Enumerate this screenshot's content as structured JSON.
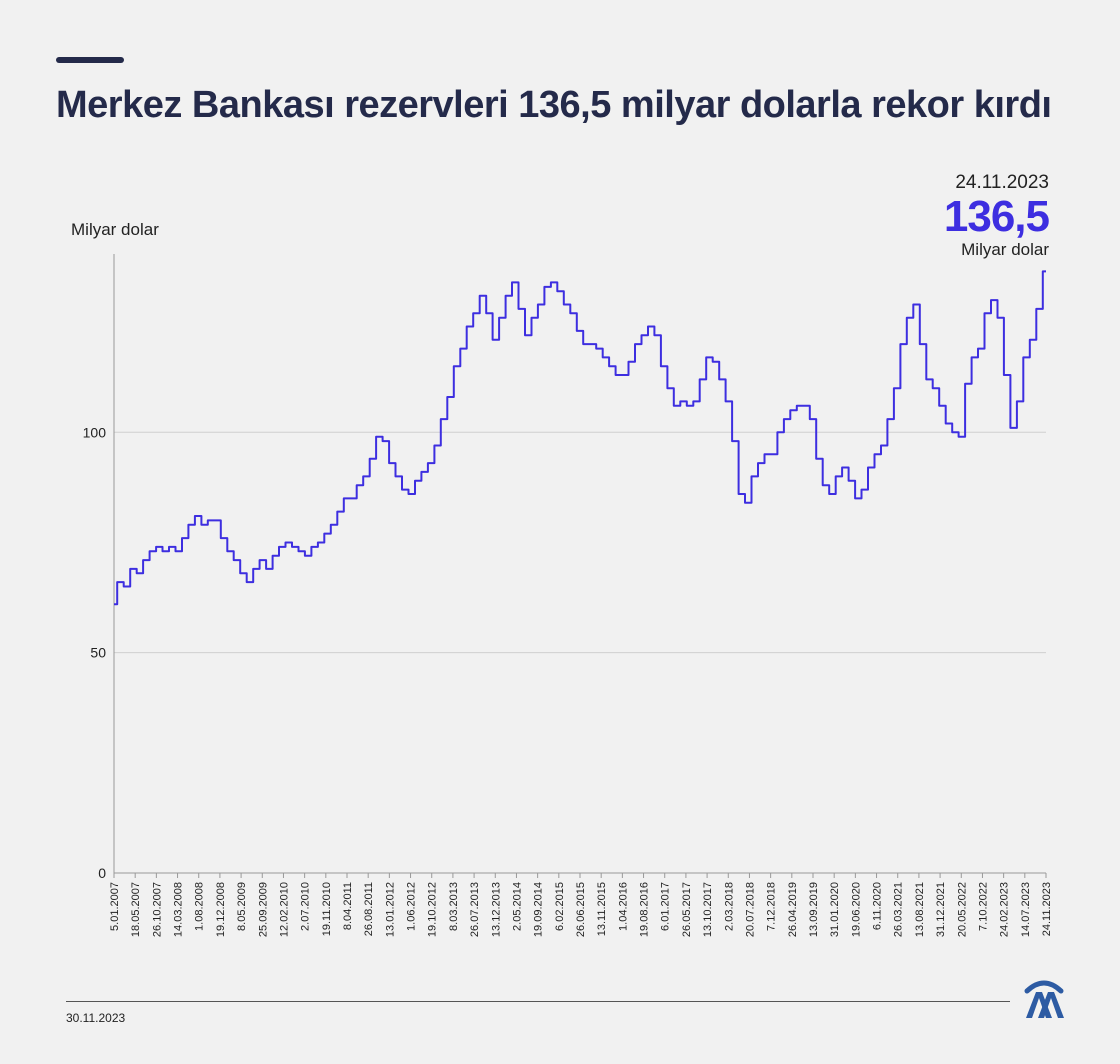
{
  "header": {
    "title": "Merkez Bankası rezervleri 136,5 milyar dolarla rekor kırdı"
  },
  "callout": {
    "date": "24.11.2023",
    "value": "136,5",
    "unit": "Milyar dolar"
  },
  "footer": {
    "date": "30.11.2023",
    "logo": "aa-logo-icon"
  },
  "colors": {
    "line": "#3d2ee0",
    "title": "#242a4a",
    "logo": "#2d5ba3"
  },
  "chart_data": {
    "type": "line",
    "title": "",
    "ylabel": "Milyar dolar",
    "xlabel": "",
    "ylim": [
      0,
      140
    ],
    "yticks": [
      0,
      50,
      100
    ],
    "grid": true,
    "x_tick_labels": [
      "5.01.2007",
      "18.05.2007",
      "26.10.2007",
      "14.03.2008",
      "1.08.2008",
      "19.12.2008",
      "8.05.2009",
      "25.09.2009",
      "12.02.2010",
      "2.07.2010",
      "19.11.2010",
      "8.04.2011",
      "26.08.2011",
      "13.01.2012",
      "1.06.2012",
      "19.10.2012",
      "8.03.2013",
      "26.07.2013",
      "13.12.2013",
      "2.05.2014",
      "19.09.2014",
      "6.02.2015",
      "26.06.2015",
      "13.11.2015",
      "1.04.2016",
      "19.08.2016",
      "6.01.2017",
      "26.05.2017",
      "13.10.2017",
      "2.03.2018",
      "20.07.2018",
      "7.12.2018",
      "26.04.2019",
      "13.09.2019",
      "31.01.2020",
      "19.06.2020",
      "6.11.2020",
      "26.03.2021",
      "13.08.2021",
      "31.12.2021",
      "20.05.2022",
      "7.10.2022",
      "24.02.2023",
      "14.07.2023",
      "24.11.2023"
    ],
    "series": [
      {
        "values": [
          61,
          66,
          65,
          69,
          68,
          71,
          73,
          74,
          73,
          74,
          73,
          76,
          79,
          81,
          79,
          80,
          80,
          76,
          73,
          71,
          68,
          66,
          69,
          71,
          69,
          72,
          74,
          75,
          74,
          73,
          72,
          74,
          75,
          77,
          79,
          82,
          85,
          85,
          88,
          90,
          94,
          99,
          98,
          93,
          90,
          87,
          86,
          89,
          91,
          93,
          97,
          103,
          108,
          115,
          119,
          124,
          127,
          131,
          127,
          121,
          126,
          131,
          134,
          128,
          122,
          126,
          129,
          133,
          134,
          132,
          129,
          127,
          123,
          120,
          120,
          119,
          117,
          115,
          113,
          113,
          116,
          120,
          122,
          124,
          122,
          115,
          110,
          106,
          107,
          106,
          107,
          112,
          117,
          116,
          112,
          107,
          98,
          86,
          84,
          90,
          93,
          95,
          95,
          100,
          103,
          105,
          106,
          106,
          103,
          94,
          88,
          86,
          90,
          92,
          89,
          85,
          87,
          92,
          95,
          97,
          103,
          110,
          120,
          126,
          129,
          120,
          112,
          110,
          106,
          102,
          100,
          99,
          111,
          117,
          119,
          127,
          130,
          126,
          113,
          101,
          107,
          117,
          121,
          128,
          136.5
        ]
      }
    ]
  }
}
